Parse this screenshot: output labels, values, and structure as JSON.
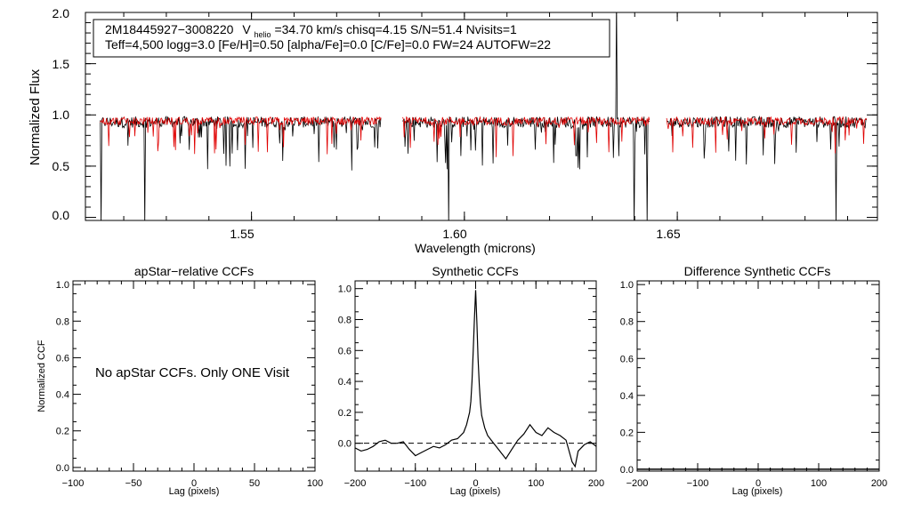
{
  "colors": {
    "observed": "#000000",
    "model": "#e00000",
    "axes": "#000000"
  },
  "chart_data": [
    {
      "type": "line",
      "id": "spectrum",
      "xlabel": "Wavelength (microns)",
      "ylabel": "Normalized Flux",
      "xlim": [
        1.511,
        1.697
      ],
      "ylim": [
        -0.03,
        2.0
      ],
      "xticks": [
        1.55,
        1.6,
        1.65
      ],
      "xtick_labels": [
        "1.55",
        "1.60",
        "1.65"
      ],
      "yticks": [
        0.0,
        0.5,
        1.0,
        1.5,
        2.0
      ],
      "ytick_labels": [
        "0.0",
        "0.5",
        "1.0",
        "1.5",
        "2.0"
      ],
      "chips": [
        [
          1.5145,
          1.5805
        ],
        [
          1.5855,
          1.6435
        ],
        [
          1.6475,
          1.6945
        ]
      ],
      "series": [
        {
          "name": "observed",
          "color": "#000000",
          "level": 0.93,
          "noise": 0.055
        },
        {
          "name": "model",
          "color": "#e00000",
          "level": 0.94,
          "noise": 0.04
        }
      ],
      "annotation": {
        "star_id": "2M18445927−3008220",
        "v_label": "V",
        "v_sub": "helio",
        "v_rest": "=34.70 km/s  chisq=4.15  S/N=51.4  Nvisits=1",
        "line2": "Teff=4,500 logg=3.0 [Fe/H]=0.50 [alpha/Fe]=0.0 [C/Fe]=0.0 FW=24 AUTOFW=22"
      }
    },
    {
      "type": "line",
      "id": "ccf_apstar",
      "title": "apStar−relative CCFs",
      "xlabel": "Lag (pixels)",
      "ylabel": "Normalized CCF",
      "xlim": [
        -100,
        100
      ],
      "ylim": [
        -0.02,
        1.02
      ],
      "xticks": [
        -100,
        -50,
        0,
        50,
        100
      ],
      "xtick_labels": [
        "−100",
        "−50",
        "0",
        "50",
        "100"
      ],
      "yticks": [
        0.0,
        0.2,
        0.4,
        0.6,
        0.8,
        1.0
      ],
      "ytick_labels": [
        "0.0",
        "0.2",
        "0.4",
        "0.6",
        "0.8",
        "1.0"
      ],
      "message": "No apStar CCFs.  Only ONE Visit",
      "series": []
    },
    {
      "type": "line",
      "id": "ccf_synthetic",
      "title": "Synthetic CCFs",
      "xlabel": "Lag (pixels)",
      "xlim": [
        -200,
        200
      ],
      "ylim": [
        -0.18,
        1.05
      ],
      "xticks": [
        -200,
        -100,
        0,
        100,
        200
      ],
      "xtick_labels": [
        "−200",
        "−100",
        "0",
        "100",
        "200"
      ],
      "yticks": [
        0.0,
        0.2,
        0.4,
        0.6,
        0.8,
        1.0
      ],
      "ytick_labels": [
        "0.0",
        "0.2",
        "0.4",
        "0.6",
        "0.8",
        "1.0"
      ],
      "zero_line": true,
      "series": [
        {
          "name": "synthetic CCF",
          "x": [
            -200,
            -190,
            -180,
            -170,
            -160,
            -150,
            -140,
            -130,
            -120,
            -110,
            -100,
            -90,
            -80,
            -70,
            -60,
            -50,
            -40,
            -30,
            -20,
            -15,
            -10,
            -8,
            -6,
            -4,
            -2,
            0,
            2,
            4,
            6,
            8,
            10,
            15,
            20,
            30,
            40,
            50,
            60,
            70,
            80,
            90,
            100,
            110,
            120,
            130,
            140,
            150,
            155,
            160,
            165,
            170,
            180,
            190,
            200
          ],
          "y": [
            -0.03,
            -0.05,
            -0.04,
            -0.02,
            0.01,
            0.02,
            0.0,
            0.0,
            0.01,
            -0.04,
            -0.08,
            -0.06,
            -0.04,
            -0.02,
            -0.03,
            -0.01,
            0.02,
            0.03,
            0.07,
            0.12,
            0.2,
            0.27,
            0.4,
            0.6,
            0.8,
            0.99,
            0.78,
            0.55,
            0.38,
            0.26,
            0.18,
            0.1,
            0.05,
            0.0,
            -0.05,
            -0.1,
            -0.04,
            0.02,
            0.06,
            0.12,
            0.07,
            0.05,
            0.1,
            0.07,
            0.05,
            0.02,
            -0.05,
            -0.12,
            -0.15,
            -0.05,
            -0.01,
            0.01,
            -0.02
          ]
        }
      ]
    },
    {
      "type": "line",
      "id": "ccf_difference",
      "title": "Difference Synthetic CCFs",
      "xlabel": "Lag (pixels)",
      "xlim": [
        -200,
        200
      ],
      "ylim": [
        -0.01,
        1.02
      ],
      "xticks": [
        -200,
        -100,
        0,
        100,
        200
      ],
      "xtick_labels": [
        "−200",
        "−100",
        "0",
        "100",
        "200"
      ],
      "yticks": [
        0.0,
        0.2,
        0.4,
        0.6,
        0.8,
        1.0
      ],
      "ytick_labels": [
        "0.0",
        "0.2",
        "0.4",
        "0.6",
        "0.8",
        "1.0"
      ],
      "series": [
        {
          "name": "difference CCF",
          "x": [
            -200,
            200
          ],
          "y": [
            0.0,
            0.0
          ]
        }
      ]
    }
  ]
}
